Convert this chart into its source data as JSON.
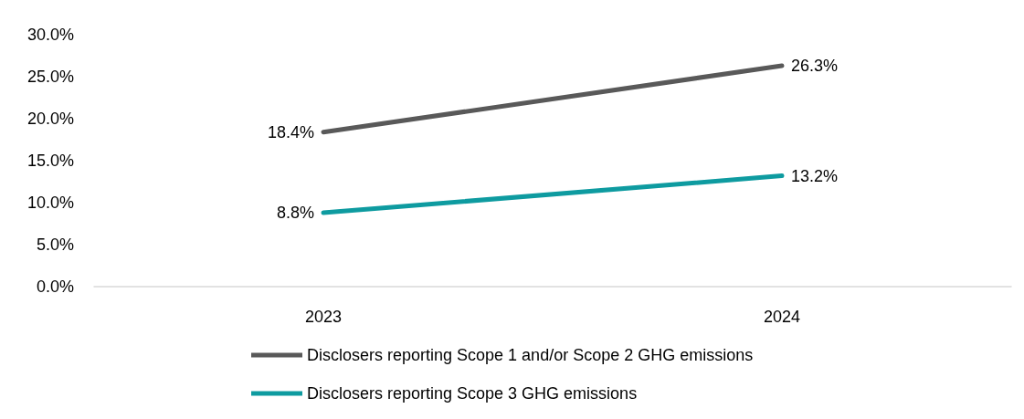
{
  "chart_data": {
    "type": "line",
    "categories": [
      "2023",
      "2024"
    ],
    "series": [
      {
        "name": "Disclosers reporting Scope 1 and/or Scope 2 GHG emissions",
        "color": "#595959",
        "values": [
          18.4,
          26.3
        ],
        "value_labels": [
          "18.4%",
          "26.3%"
        ]
      },
      {
        "name": "Disclosers reporting Scope 3 GHG emissions",
        "color": "#0e9ba0",
        "values": [
          8.8,
          13.2
        ],
        "value_labels": [
          "8.8%",
          "13.2%"
        ]
      }
    ],
    "ylim": [
      0,
      30
    ],
    "yticks": [
      {
        "value": 0,
        "label": "0.0%"
      },
      {
        "value": 5,
        "label": "5.0%"
      },
      {
        "value": 10,
        "label": "10.0%"
      },
      {
        "value": 15,
        "label": "15.0%"
      },
      {
        "value": 20,
        "label": "20.0%"
      },
      {
        "value": 25,
        "label": "25.0%"
      },
      {
        "value": 30,
        "label": "30.0%"
      }
    ],
    "grid": false,
    "legend": "bottom",
    "marker": "none",
    "line_style": "solid"
  }
}
